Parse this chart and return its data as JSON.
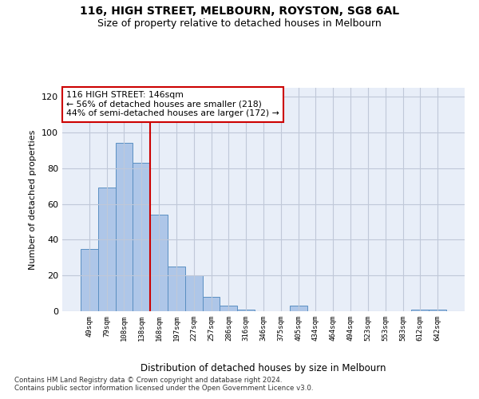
{
  "title1": "116, HIGH STREET, MELBOURN, ROYSTON, SG8 6AL",
  "title2": "Size of property relative to detached houses in Melbourn",
  "xlabel": "Distribution of detached houses by size in Melbourn",
  "ylabel": "Number of detached properties",
  "annotation_line1": "116 HIGH STREET: 146sqm",
  "annotation_line2": "← 56% of detached houses are smaller (218)",
  "annotation_line3": "44% of semi-detached houses are larger (172) →",
  "footer1": "Contains HM Land Registry data © Crown copyright and database right 2024.",
  "footer2": "Contains public sector information licensed under the Open Government Licence v3.0.",
  "bin_labels": [
    "49sqm",
    "79sqm",
    "108sqm",
    "138sqm",
    "168sqm",
    "197sqm",
    "227sqm",
    "257sqm",
    "286sqm",
    "316sqm",
    "346sqm",
    "375sqm",
    "405sqm",
    "434sqm",
    "464sqm",
    "494sqm",
    "523sqm",
    "553sqm",
    "583sqm",
    "612sqm",
    "642sqm"
  ],
  "bar_values": [
    35,
    69,
    94,
    83,
    54,
    25,
    20,
    8,
    3,
    1,
    0,
    0,
    3,
    0,
    0,
    0,
    0,
    0,
    0,
    1,
    1
  ],
  "bar_color": "#aec6e8",
  "bar_edge_color": "#5a8fc2",
  "vline_color": "#cc0000",
  "vline_x": 3.5,
  "ylim": [
    0,
    125
  ],
  "yticks": [
    0,
    20,
    40,
    60,
    80,
    100,
    120
  ],
  "bg_color": "#e8eef8",
  "grid_color": "#c0c8d8",
  "title1_fontsize": 10,
  "title2_fontsize": 9
}
